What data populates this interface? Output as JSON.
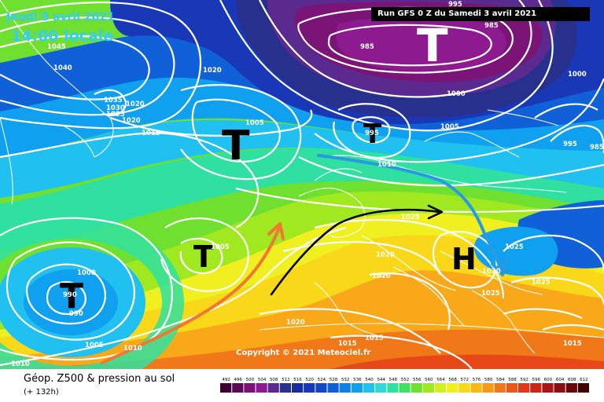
{
  "header": {
    "date": "Jeudi 8 avril 2021",
    "time": "14:00 locale",
    "run": "Run GFS 0 Z du Samedi 3 avril 2021"
  },
  "footer": {
    "title": "Géop. Z500 & pression au sol",
    "lead": "(+ 132h)",
    "copyright": "Copyright © 2021 Meteociel.fr"
  },
  "legend": {
    "values": [
      "492",
      "496",
      "500",
      "504",
      "508",
      "512",
      "516",
      "520",
      "524",
      "528",
      "532",
      "536",
      "540",
      "544",
      "548",
      "552",
      "556",
      "560",
      "564",
      "568",
      "572",
      "576",
      "580",
      "584",
      "588",
      "592",
      "596",
      "600",
      "604",
      "608",
      "612"
    ],
    "colors": [
      "#3a0033",
      "#5a0a55",
      "#7a1477",
      "#8e1a8f",
      "#5a2a8e",
      "#28308e",
      "#1a2aa0",
      "#1838b8",
      "#1048c8",
      "#0f60d8",
      "#1080e8",
      "#10a0f0",
      "#20c0f0",
      "#30d8d8",
      "#30e0a0",
      "#40e060",
      "#70e030",
      "#a0e820",
      "#d0f020",
      "#f0f020",
      "#f8d818",
      "#f8b818",
      "#f89818",
      "#f07818",
      "#e85818",
      "#e03818",
      "#c82818",
      "#a81818",
      "#881010",
      "#680808",
      "#400404"
    ]
  },
  "map": {
    "systems": [
      {
        "type": "low",
        "symbol": "T"
      },
      {
        "type": "low",
        "symbol": "T"
      },
      {
        "type": "low",
        "symbol": "T"
      },
      {
        "type": "low",
        "symbol": "T"
      },
      {
        "type": "low",
        "symbol": "T"
      },
      {
        "type": "high",
        "symbol": "H"
      }
    ],
    "isobar_labels": [
      "985",
      "995",
      "1000",
      "1005",
      "1010",
      "1015",
      "1020",
      "1025",
      "1030",
      "1035",
      "1040",
      "1045"
    ],
    "labels_on_map": [
      {
        "text": "1045"
      },
      {
        "text": "1040"
      },
      {
        "text": "1035"
      },
      {
        "text": "1030"
      },
      {
        "text": "1025"
      },
      {
        "text": "1020"
      },
      {
        "text": "1020"
      },
      {
        "text": "1020"
      },
      {
        "text": "1015"
      },
      {
        "text": "1005"
      },
      {
        "text": "985"
      },
      {
        "text": "985"
      },
      {
        "text": "995"
      },
      {
        "text": "1000"
      },
      {
        "text": "1000"
      },
      {
        "text": "1005"
      },
      {
        "text": "995"
      },
      {
        "text": "985"
      },
      {
        "text": "995"
      },
      {
        "text": "1010"
      },
      {
        "text": "1025"
      },
      {
        "text": "1020"
      },
      {
        "text": "1025"
      },
      {
        "text": "1030"
      },
      {
        "text": "1025"
      },
      {
        "text": "1025"
      },
      {
        "text": "1020"
      },
      {
        "text": "1005"
      },
      {
        "text": "1000"
      },
      {
        "text": "990"
      },
      {
        "text": "990"
      },
      {
        "text": "1005"
      },
      {
        "text": "1010"
      },
      {
        "text": "1010"
      },
      {
        "text": "1020"
      },
      {
        "text": "1015"
      },
      {
        "text": "1015"
      },
      {
        "text": "1015"
      }
    ]
  }
}
